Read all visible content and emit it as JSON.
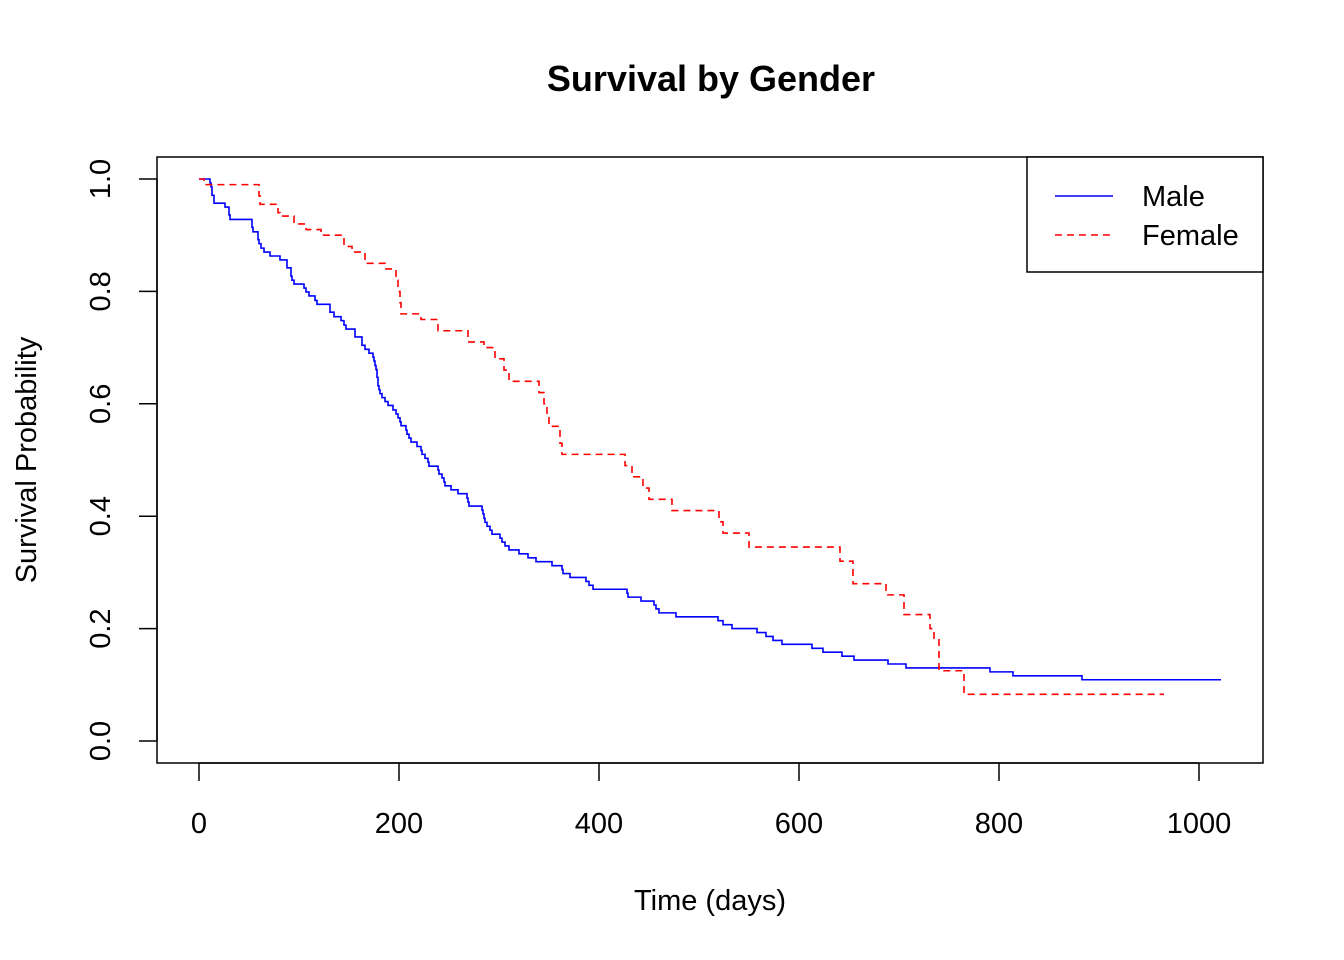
{
  "chart_data": {
    "type": "line",
    "subtype": "step",
    "title": "Survival by Gender",
    "xlabel": "Time (days)",
    "ylabel": "Survival Probability",
    "xlim": [
      0,
      1020
    ],
    "ylim": [
      0,
      1.0
    ],
    "xticks": [
      "0",
      "200",
      "400",
      "600",
      "800",
      "1000"
    ],
    "xtick_values": [
      0,
      200,
      400,
      600,
      800,
      1000
    ],
    "yticks": [
      "0.0",
      "0.2",
      "0.4",
      "0.6",
      "0.8",
      "1.0"
    ],
    "ytick_values": [
      0,
      0.2,
      0.4,
      0.6,
      0.8,
      1.0
    ],
    "grid": false,
    "legend_position": "top-right",
    "series": [
      {
        "name": "Male",
        "color": "#0000ff",
        "dash": "solid",
        "points": [
          [
            0,
            1.0
          ],
          [
            11,
            0.993
          ],
          [
            12,
            0.986
          ],
          [
            13,
            0.971
          ],
          [
            15,
            0.957
          ],
          [
            26,
            0.95
          ],
          [
            30,
            0.936
          ],
          [
            31,
            0.928
          ],
          [
            53,
            0.914
          ],
          [
            54,
            0.906
          ],
          [
            59,
            0.892
          ],
          [
            60,
            0.885
          ],
          [
            62,
            0.877
          ],
          [
            65,
            0.87
          ],
          [
            71,
            0.863
          ],
          [
            81,
            0.856
          ],
          [
            88,
            0.842
          ],
          [
            92,
            0.827
          ],
          [
            93,
            0.82
          ],
          [
            95,
            0.813
          ],
          [
            105,
            0.806
          ],
          [
            107,
            0.799
          ],
          [
            110,
            0.792
          ],
          [
            116,
            0.784
          ],
          [
            118,
            0.777
          ],
          [
            131,
            0.763
          ],
          [
            135,
            0.755
          ],
          [
            142,
            0.748
          ],
          [
            145,
            0.74
          ],
          [
            147,
            0.733
          ],
          [
            156,
            0.719
          ],
          [
            163,
            0.704
          ],
          [
            166,
            0.697
          ],
          [
            170,
            0.69
          ],
          [
            174,
            0.683
          ],
          [
            175,
            0.676
          ],
          [
            176,
            0.668
          ],
          [
            177,
            0.661
          ],
          [
            178,
            0.647
          ],
          [
            179,
            0.632
          ],
          [
            180,
            0.625
          ],
          [
            181,
            0.618
          ],
          [
            183,
            0.611
          ],
          [
            186,
            0.604
          ],
          [
            189,
            0.597
          ],
          [
            194,
            0.589
          ],
          [
            197,
            0.582
          ],
          [
            199,
            0.575
          ],
          [
            201,
            0.568
          ],
          [
            202,
            0.561
          ],
          [
            207,
            0.553
          ],
          [
            208,
            0.546
          ],
          [
            210,
            0.539
          ],
          [
            212,
            0.532
          ],
          [
            218,
            0.524
          ],
          [
            222,
            0.517
          ],
          [
            223,
            0.51
          ],
          [
            226,
            0.503
          ],
          [
            229,
            0.496
          ],
          [
            230,
            0.489
          ],
          [
            239,
            0.482
          ],
          [
            240,
            0.475
          ],
          [
            243,
            0.468
          ],
          [
            245,
            0.461
          ],
          [
            246,
            0.454
          ],
          [
            252,
            0.447
          ],
          [
            259,
            0.44
          ],
          [
            268,
            0.432
          ],
          [
            269,
            0.425
          ],
          [
            270,
            0.418
          ],
          [
            283,
            0.411
          ],
          [
            284,
            0.404
          ],
          [
            285,
            0.396
          ],
          [
            286,
            0.389
          ],
          [
            288,
            0.382
          ],
          [
            291,
            0.375
          ],
          [
            293,
            0.368
          ],
          [
            301,
            0.361
          ],
          [
            303,
            0.354
          ],
          [
            306,
            0.347
          ],
          [
            310,
            0.34
          ],
          [
            320,
            0.333
          ],
          [
            329,
            0.326
          ],
          [
            337,
            0.319
          ],
          [
            353,
            0.312
          ],
          [
            363,
            0.305
          ],
          [
            364,
            0.298
          ],
          [
            371,
            0.291
          ],
          [
            387,
            0.284
          ],
          [
            390,
            0.277
          ],
          [
            394,
            0.27
          ],
          [
            428,
            0.263
          ],
          [
            429,
            0.256
          ],
          [
            442,
            0.249
          ],
          [
            455,
            0.242
          ],
          [
            457,
            0.235
          ],
          [
            460,
            0.228
          ],
          [
            477,
            0.221
          ],
          [
            519,
            0.214
          ],
          [
            524,
            0.207
          ],
          [
            533,
            0.2
          ],
          [
            558,
            0.193
          ],
          [
            567,
            0.186
          ],
          [
            574,
            0.179
          ],
          [
            583,
            0.172
          ],
          [
            613,
            0.165
          ],
          [
            624,
            0.158
          ],
          [
            643,
            0.151
          ],
          [
            655,
            0.144
          ],
          [
            689,
            0.137
          ],
          [
            707,
            0.13
          ],
          [
            791,
            0.123
          ],
          [
            814,
            0.116
          ],
          [
            883,
            0.109
          ],
          [
            1022,
            0.109
          ]
        ],
        "points_note": "Kaplan–Meier step estimates read from the plot"
      },
      {
        "name": "Female",
        "color": "#ff0000",
        "dash": "dashed",
        "points": [
          [
            0,
            1.0
          ],
          [
            5,
            0.99
          ],
          [
            60,
            0.97
          ],
          [
            61,
            0.955
          ],
          [
            79,
            0.94
          ],
          [
            81,
            0.934
          ],
          [
            95,
            0.92
          ],
          [
            107,
            0.91
          ],
          [
            122,
            0.9
          ],
          [
            145,
            0.88
          ],
          [
            153,
            0.87
          ],
          [
            166,
            0.85
          ],
          [
            186,
            0.84
          ],
          [
            197,
            0.82
          ],
          [
            199,
            0.8
          ],
          [
            201,
            0.78
          ],
          [
            202,
            0.76
          ],
          [
            222,
            0.75
          ],
          [
            239,
            0.73
          ],
          [
            269,
            0.71
          ],
          [
            285,
            0.7
          ],
          [
            296,
            0.68
          ],
          [
            305,
            0.66
          ],
          [
            310,
            0.64
          ],
          [
            340,
            0.62
          ],
          [
            345,
            0.6
          ],
          [
            348,
            0.58
          ],
          [
            350,
            0.56
          ],
          [
            361,
            0.53
          ],
          [
            363,
            0.51
          ],
          [
            426,
            0.49
          ],
          [
            433,
            0.47
          ],
          [
            444,
            0.45
          ],
          [
            450,
            0.43
          ],
          [
            473,
            0.41
          ],
          [
            520,
            0.39
          ],
          [
            524,
            0.37
          ],
          [
            550,
            0.345
          ],
          [
            641,
            0.32
          ],
          [
            654,
            0.28
          ],
          [
            687,
            0.26
          ],
          [
            705,
            0.225
          ],
          [
            731,
            0.2
          ],
          [
            735,
            0.18
          ],
          [
            740,
            0.125
          ],
          [
            765,
            0.083
          ],
          [
            965,
            0.083
          ]
        ],
        "points_note": "Kaplan–Meier step estimates read from the plot"
      }
    ]
  }
}
